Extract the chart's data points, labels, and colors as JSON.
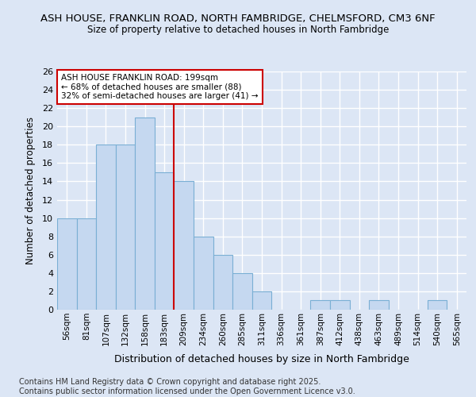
{
  "title1": "ASH HOUSE, FRANKLIN ROAD, NORTH FAMBRIDGE, CHELMSFORD, CM3 6NF",
  "title2": "Size of property relative to detached houses in North Fambridge",
  "xlabel": "Distribution of detached houses by size in North Fambridge",
  "ylabel": "Number of detached properties",
  "categories": [
    "56sqm",
    "81sqm",
    "107sqm",
    "132sqm",
    "158sqm",
    "183sqm",
    "209sqm",
    "234sqm",
    "260sqm",
    "285sqm",
    "311sqm",
    "336sqm",
    "361sqm",
    "387sqm",
    "412sqm",
    "438sqm",
    "463sqm",
    "489sqm",
    "514sqm",
    "540sqm",
    "565sqm"
  ],
  "values": [
    10,
    10,
    18,
    18,
    21,
    15,
    14,
    8,
    6,
    4,
    2,
    0,
    0,
    1,
    1,
    0,
    1,
    0,
    0,
    1,
    0
  ],
  "bar_color": "#c5d8f0",
  "bar_edge_color": "#7aafd4",
  "background_color": "#dce6f5",
  "grid_color": "#ffffff",
  "vline_x": 5.5,
  "vline_color": "#cc0000",
  "annotation_text": "ASH HOUSE FRANKLIN ROAD: 199sqm\n← 68% of detached houses are smaller (88)\n32% of semi-detached houses are larger (41) →",
  "annotation_box_color": "#ffffff",
  "annotation_box_edge": "#cc0000",
  "ylim": [
    0,
    26
  ],
  "yticks": [
    0,
    2,
    4,
    6,
    8,
    10,
    12,
    14,
    16,
    18,
    20,
    22,
    24,
    26
  ],
  "footer": "Contains HM Land Registry data © Crown copyright and database right 2025.\nContains public sector information licensed under the Open Government Licence v3.0.",
  "footer_fontsize": 7.0
}
